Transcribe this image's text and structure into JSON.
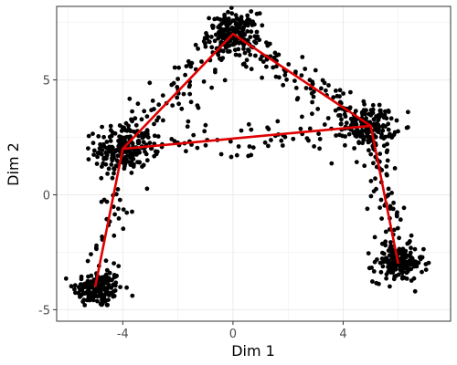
{
  "chart_data": {
    "type": "scatter",
    "xlabel": "Dim 1",
    "ylabel": "Dim 2",
    "xlim": [
      -6.4,
      7.9
    ],
    "ylim": [
      -5.5,
      8.2
    ],
    "x_ticks": [
      -4,
      0,
      4
    ],
    "y_ticks": [
      -5,
      0,
      5
    ],
    "x_tick_labels": [
      "-4",
      "0",
      "4"
    ],
    "y_tick_labels": [
      "-5",
      "0",
      "5"
    ],
    "grid": true,
    "point_color": "#000000",
    "line_color": "#e00000",
    "clusters": [
      {
        "center": [
          -4.9,
          -4.1
        ],
        "spread": [
          0.45,
          0.4
        ],
        "count": 160
      },
      {
        "center": [
          -4.0,
          2.0
        ],
        "spread": [
          0.5,
          0.55
        ],
        "count": 180
      },
      {
        "center": [
          0.0,
          7.0
        ],
        "spread": [
          0.45,
          0.45
        ],
        "count": 170
      },
      {
        "center": [
          5.0,
          3.0
        ],
        "spread": [
          0.45,
          0.45
        ],
        "count": 150
      },
      {
        "center": [
          6.0,
          -3.0
        ],
        "spread": [
          0.45,
          0.4
        ],
        "count": 160
      }
    ],
    "branches": [
      {
        "from": [
          -4.9,
          -4.1
        ],
        "to": [
          -4.0,
          2.0
        ],
        "count": 45,
        "jitter": 0.35
      },
      {
        "from": [
          -4.0,
          2.0
        ],
        "to": [
          0.0,
          7.0
        ],
        "count": 90,
        "jitter": 0.45
      },
      {
        "from": [
          0.0,
          7.0
        ],
        "to": [
          5.0,
          3.0
        ],
        "count": 110,
        "jitter": 0.45
      },
      {
        "from": [
          5.0,
          3.0
        ],
        "to": [
          6.0,
          -3.0
        ],
        "count": 70,
        "jitter": 0.35
      },
      {
        "from": [
          -4.0,
          2.0
        ],
        "to": [
          5.0,
          3.0
        ],
        "count": 90,
        "jitter": 0.45
      }
    ],
    "trajectory_segments": [
      {
        "points": [
          [
            -5.0,
            -4.0
          ],
          [
            -4.0,
            2.0
          ],
          [
            0.0,
            7.0
          ],
          [
            5.0,
            3.0
          ],
          [
            6.0,
            -3.0
          ]
        ]
      },
      {
        "points": [
          [
            -4.0,
            2.0
          ],
          [
            5.0,
            3.0
          ]
        ]
      }
    ]
  }
}
